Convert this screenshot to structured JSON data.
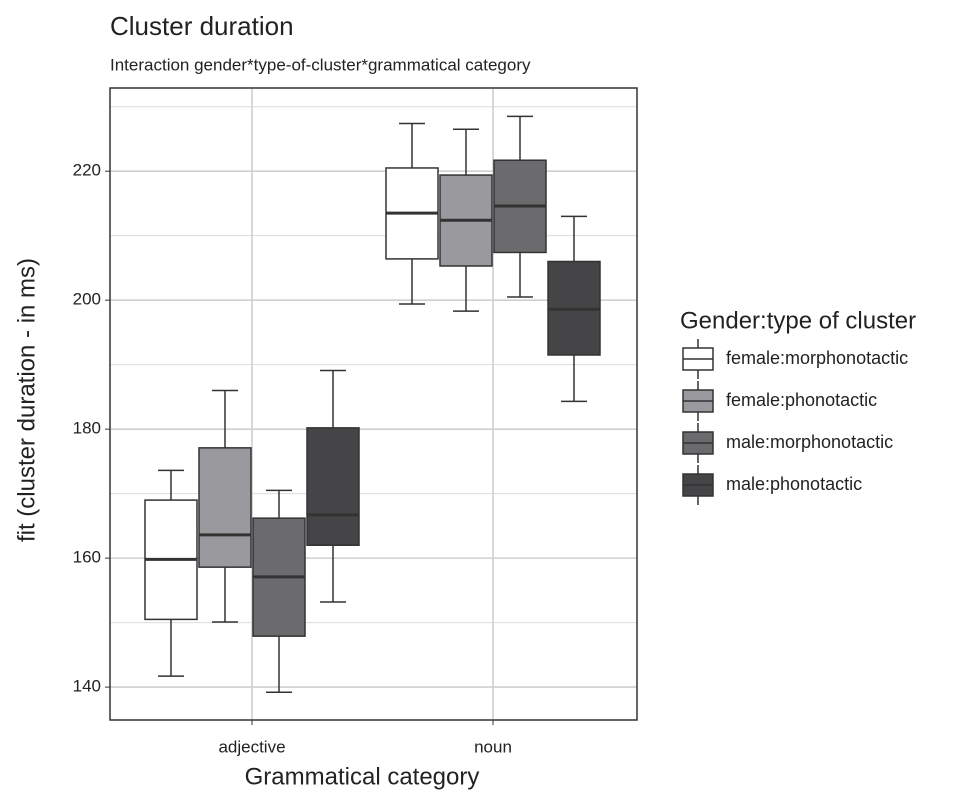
{
  "chart_data": {
    "type": "box",
    "title": "Cluster duration",
    "subtitle": "Interaction gender*type-of-cluster*grammatical category",
    "x_label": "Grammatical category",
    "y_label": "fit (cluster duration - in ms)",
    "legend_title": "Gender:type of cluster",
    "categories": [
      "adjective",
      "noun"
    ],
    "ylim": [
      134.9,
      232.9
    ],
    "yticks": [
      140,
      160,
      180,
      200,
      220
    ],
    "minor_yticks": [
      150,
      170,
      190,
      210,
      230
    ],
    "grid": true,
    "legend": "right",
    "series": [
      {
        "name": "female:morphonotactic",
        "color": "#ffffff",
        "min": [
          141.7,
          199.4
        ],
        "q1": [
          150.5,
          206.4
        ],
        "median": [
          159.8,
          213.5
        ],
        "q3": [
          169.0,
          220.5
        ],
        "max": [
          173.6,
          227.4
        ]
      },
      {
        "name": "female:phonotactic",
        "color": "#9a9a9e",
        "min": [
          150.1,
          198.3
        ],
        "q1": [
          158.6,
          205.3
        ],
        "median": [
          163.6,
          212.4
        ],
        "q3": [
          177.1,
          219.4
        ],
        "max": [
          186.0,
          226.5
        ]
      },
      {
        "name": "male:morphonotactic",
        "color": "#6b6b6e",
        "min": [
          139.2,
          200.5
        ],
        "q1": [
          147.9,
          207.4
        ],
        "median": [
          157.1,
          214.6
        ],
        "q3": [
          166.2,
          221.7
        ],
        "max": [
          170.5,
          228.5
        ]
      },
      {
        "name": "male:phonotactic",
        "color": "#454548",
        "min": [
          153.2,
          184.3
        ],
        "q1": [
          162.0,
          191.5
        ],
        "median": [
          166.7,
          198.6
        ],
        "q3": [
          180.2,
          206.0
        ],
        "max": [
          189.1,
          213.0
        ]
      }
    ]
  }
}
